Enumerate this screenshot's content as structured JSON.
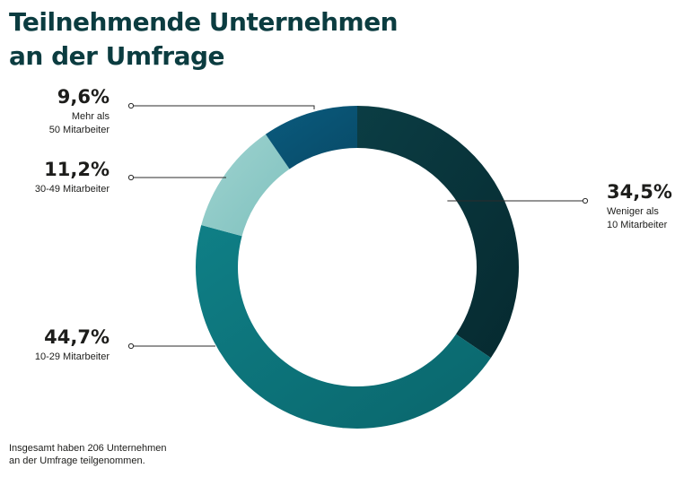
{
  "title": {
    "line1": "Teilnehmende Unternehmen",
    "line2": "an der Umfrage"
  },
  "footnote": {
    "line1": "Insgesamt haben 206 Unternehmen",
    "line2": "an der Umfrage teilgenommen."
  },
  "chart_data": {
    "type": "pie",
    "title": "Teilnehmende Unternehmen an der Umfrage",
    "slices": [
      {
        "value": 34.5,
        "value_label": "34,5%",
        "label_lines": [
          "Weniger als",
          "10 Mitarbeiter"
        ],
        "color": "#0b3d44",
        "color_dark": "#062a30"
      },
      {
        "value": 44.7,
        "value_label": "44,7%",
        "label_lines": [
          "10-29 Mitarbeiter"
        ],
        "color": "#0f7f86",
        "color_dark": "#0a666c"
      },
      {
        "value": 11.2,
        "value_label": "11,2%",
        "label_lines": [
          "30-49 Mitarbeiter"
        ],
        "color": "#9fd3d0",
        "color_dark": "#7fc1be"
      },
      {
        "value": 9.6,
        "value_label": "9,6%",
        "label_lines": [
          "Mehr als",
          "50 Mitarbeiter"
        ],
        "color": "#0a5b7e",
        "color_dark": "#084a67"
      }
    ]
  }
}
